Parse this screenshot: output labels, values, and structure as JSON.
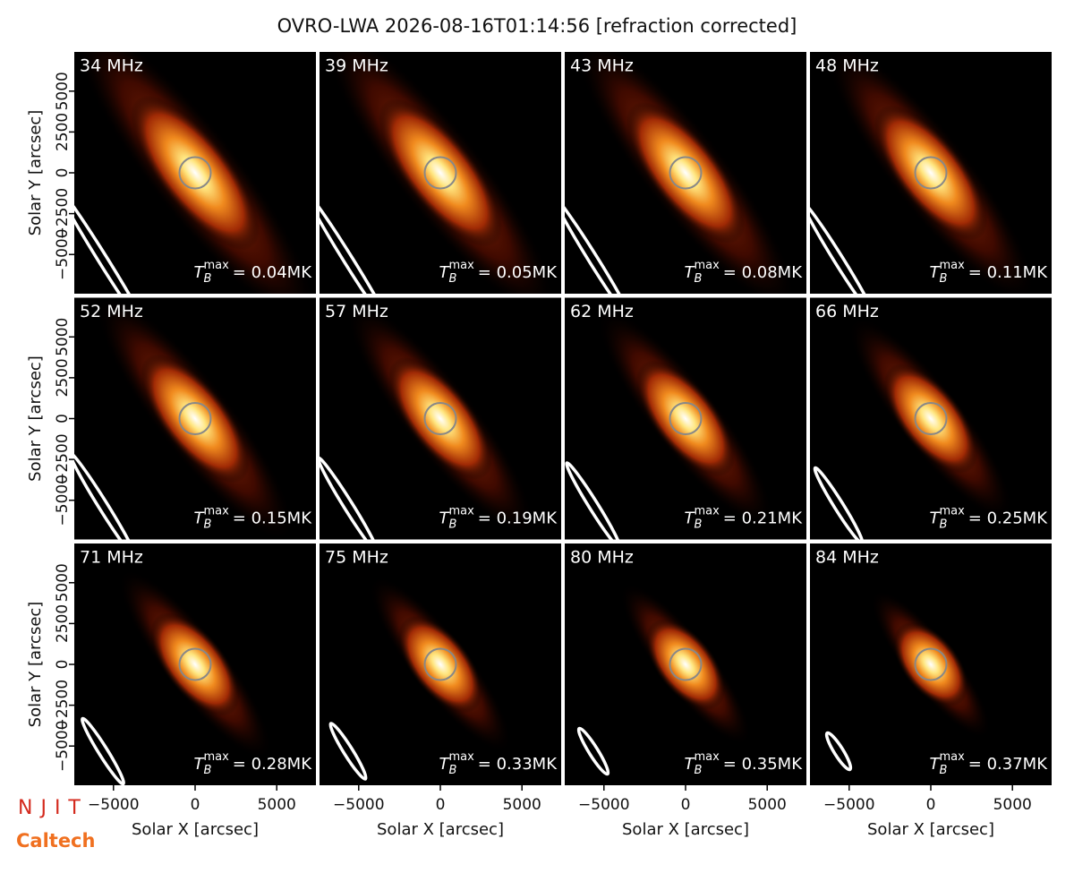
{
  "chart_data": {
    "type": "image-grid",
    "title": "OVRO-LWA 2026-08-16T01:14:56 [refraction corrected]",
    "xlabel": "Solar X [arcsec]",
    "ylabel": "Solar Y [arcsec]",
    "xlim": [
      -7400,
      7400
    ],
    "ylim": [
      -7400,
      7400
    ],
    "xticks": [
      {
        "value": -5000,
        "label": "−5000"
      },
      0,
      5000
    ],
    "yticks": [
      {
        "value": -5000,
        "label": "−5000"
      },
      {
        "value": -2500,
        "label": "−2500"
      },
      0,
      2500,
      5000
    ],
    "tmax_symbol": {
      "base": "T",
      "sub": "B",
      "sup": "max"
    },
    "panels": [
      {
        "title": "34 MHz",
        "tmax": "= 0.04MK"
      },
      {
        "title": "39 MHz",
        "tmax": "= 0.05MK"
      },
      {
        "title": "43 MHz",
        "tmax": "= 0.08MK"
      },
      {
        "title": "48 MHz",
        "tmax": "= 0.11MK"
      },
      {
        "title": "52 MHz",
        "tmax": "= 0.15MK"
      },
      {
        "title": "57 MHz",
        "tmax": "= 0.19MK"
      },
      {
        "title": "62 MHz",
        "tmax": "= 0.21MK"
      },
      {
        "title": "66 MHz",
        "tmax": "= 0.25MK"
      },
      {
        "title": "71 MHz",
        "tmax": "= 0.28MK"
      },
      {
        "title": "75 MHz",
        "tmax": "= 0.33MK"
      },
      {
        "title": "80 MHz",
        "tmax": "= 0.35MK"
      },
      {
        "title": "84 MHz",
        "tmax": "= 0.37MK"
      }
    ],
    "logos": [
      "NJIT",
      "Caltech"
    ]
  }
}
